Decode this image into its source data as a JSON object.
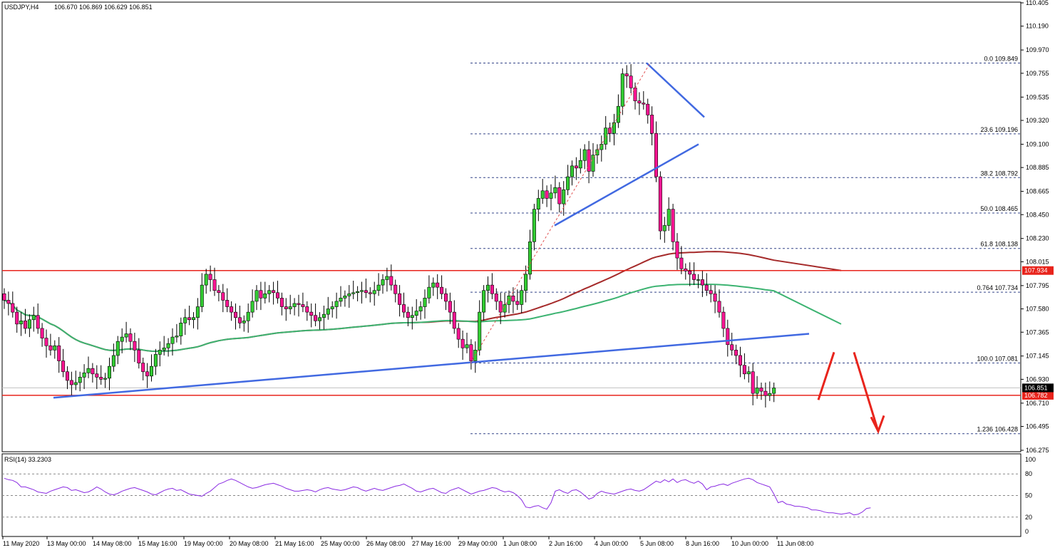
{
  "header": {
    "symbol": "USDJPY,H4",
    "ohlc": "106.670 106.869 106.629 106.851"
  },
  "rsi": {
    "label": "RSI(14) 33.2303",
    "levels": [
      "100",
      "80",
      "50",
      "20",
      "0"
    ],
    "values": [
      74,
      72,
      71,
      68,
      62,
      62,
      60,
      58,
      55,
      54,
      53,
      56,
      58,
      60,
      62,
      61,
      57,
      58,
      56,
      54,
      55,
      58,
      62,
      59,
      55,
      52,
      51,
      53,
      56,
      58,
      60,
      61,
      59,
      57,
      55,
      52,
      51,
      54,
      57,
      59,
      60,
      57,
      58,
      55,
      52,
      51,
      50,
      49,
      53,
      56,
      61,
      66,
      68,
      71,
      73,
      71,
      68,
      65,
      62,
      60,
      61,
      63,
      65,
      66,
      67,
      65,
      63,
      60,
      58,
      56,
      56,
      57,
      58,
      57,
      55,
      58,
      60,
      61,
      59,
      58,
      57,
      58,
      60,
      62,
      61,
      58,
      56,
      58,
      60,
      58,
      57,
      59,
      61,
      63,
      64,
      66,
      63,
      60,
      56,
      55,
      57,
      59,
      60,
      57,
      54,
      53,
      57,
      59,
      61,
      58,
      55,
      52,
      54,
      56,
      57,
      59,
      61,
      60,
      57,
      55,
      56,
      54,
      50,
      44,
      34,
      33,
      35,
      36,
      33,
      31,
      40,
      56,
      58,
      55,
      53,
      57,
      58,
      55,
      50,
      45,
      47,
      53,
      56,
      54,
      53,
      52,
      54,
      56,
      58,
      59,
      57,
      56,
      58,
      62,
      66,
      70,
      68,
      72,
      69,
      73,
      68,
      71,
      72,
      69,
      67,
      70,
      66,
      58,
      62,
      63,
      65,
      66,
      64,
      67,
      69,
      71,
      73,
      74,
      72,
      68,
      66,
      64,
      62,
      52,
      40,
      42,
      38,
      37,
      35,
      35,
      34,
      33,
      30,
      30,
      29,
      27,
      26,
      26,
      25,
      24,
      25,
      26,
      23,
      24,
      27,
      32,
      33
    ]
  },
  "chart_data": {
    "type": "candlestick",
    "symbol": "USDJPY,H4",
    "ylim": [
      106.275,
      110.405
    ],
    "price_ticks": [
      "110.405",
      "110.190",
      "109.970",
      "109.755",
      "109.535",
      "109.320",
      "109.100",
      "108.885",
      "108.665",
      "108.450",
      "108.230",
      "108.015",
      "107.795",
      "107.580",
      "107.365",
      "107.145",
      "106.930",
      "106.710",
      "106.495",
      "106.275"
    ],
    "x_ticks": [
      "11 May 2020",
      "13 May 00:00",
      "14 May 08:00",
      "15 May 16:00",
      "19 May 00:00",
      "20 May 08:00",
      "21 May 16:00",
      "25 May 00:00",
      "26 May 08:00",
      "27 May 16:00",
      "29 May 00:00",
      "1 Jun 08:00",
      "2 Jun 16:00",
      "4 Jun 00:00",
      "5 Jun 08:00",
      "8 Jun 16:00",
      "10 Jun 00:00",
      "11 Jun 08:00"
    ],
    "close": [
      107.66,
      107.63,
      107.55,
      107.44,
      107.47,
      107.4,
      107.48,
      107.52,
      107.4,
      107.31,
      107.24,
      107.2,
      107.24,
      107.1,
      107.0,
      106.92,
      106.88,
      106.9,
      106.95,
      106.99,
      107.03,
      106.98,
      106.95,
      106.93,
      106.94,
      107.05,
      107.15,
      107.28,
      107.32,
      107.35,
      107.28,
      107.2,
      107.08,
      107.0,
      106.96,
      107.05,
      107.16,
      107.2,
      107.22,
      107.26,
      107.32,
      107.33,
      107.45,
      107.5,
      107.48,
      107.5,
      107.6,
      107.8,
      107.9,
      107.85,
      107.75,
      107.73,
      107.66,
      107.6,
      107.55,
      107.5,
      107.45,
      107.47,
      107.55,
      107.65,
      107.75,
      107.68,
      107.72,
      107.75,
      107.73,
      107.68,
      107.6,
      107.58,
      107.6,
      107.63,
      107.62,
      107.6,
      107.55,
      107.52,
      107.47,
      107.5,
      107.53,
      107.58,
      107.6,
      107.65,
      107.68,
      107.7,
      107.72,
      107.73,
      107.74,
      107.75,
      107.73,
      107.72,
      107.75,
      107.8,
      107.85,
      107.88,
      107.8,
      107.72,
      107.62,
      107.55,
      107.5,
      107.52,
      107.56,
      107.6,
      107.68,
      107.78,
      107.82,
      107.78,
      107.72,
      107.65,
      107.55,
      107.4,
      107.3,
      107.22,
      107.25,
      107.1,
      107.2,
      107.55,
      107.75,
      107.8,
      107.72,
      107.65,
      107.55,
      107.62,
      107.7,
      107.65,
      107.62,
      107.75,
      107.9,
      108.2,
      108.5,
      108.6,
      108.67,
      108.6,
      108.65,
      108.7,
      108.55,
      108.68,
      108.8,
      108.9,
      108.88,
      108.95,
      109.05,
      108.85,
      109.0,
      109.05,
      109.1,
      109.25,
      109.2,
      109.3,
      109.45,
      109.75,
      109.73,
      109.62,
      109.5,
      109.48,
      109.47,
      109.37,
      109.2,
      108.8,
      108.3,
      108.35,
      108.5,
      108.2,
      108.05,
      107.95,
      107.93,
      107.9,
      107.85,
      107.85,
      107.8,
      107.75,
      107.72,
      107.65,
      107.55,
      107.4,
      107.25,
      107.2,
      107.15,
      107.06,
      106.98,
      107.0,
      106.8,
      106.85,
      106.82,
      106.78,
      106.8,
      106.85
    ],
    "open": [
      107.72,
      107.66,
      107.63,
      107.55,
      107.44,
      107.47,
      107.4,
      107.48,
      107.52,
      107.4,
      107.31,
      107.24,
      107.2,
      107.24,
      107.1,
      107.0,
      106.92,
      106.88,
      106.9,
      106.95,
      106.99,
      107.03,
      106.98,
      106.95,
      106.93,
      106.94,
      107.05,
      107.15,
      107.28,
      107.32,
      107.35,
      107.28,
      107.2,
      107.08,
      107.0,
      106.96,
      107.05,
      107.16,
      107.2,
      107.22,
      107.26,
      107.32,
      107.33,
      107.45,
      107.5,
      107.48,
      107.5,
      107.6,
      107.8,
      107.9,
      107.85,
      107.75,
      107.73,
      107.66,
      107.6,
      107.55,
      107.5,
      107.45,
      107.47,
      107.55,
      107.65,
      107.75,
      107.68,
      107.72,
      107.75,
      107.73,
      107.68,
      107.6,
      107.58,
      107.6,
      107.63,
      107.62,
      107.6,
      107.55,
      107.52,
      107.47,
      107.5,
      107.53,
      107.58,
      107.6,
      107.65,
      107.68,
      107.7,
      107.72,
      107.73,
      107.74,
      107.75,
      107.73,
      107.72,
      107.75,
      107.8,
      107.85,
      107.88,
      107.8,
      107.72,
      107.62,
      107.55,
      107.5,
      107.52,
      107.56,
      107.6,
      107.68,
      107.78,
      107.82,
      107.78,
      107.72,
      107.65,
      107.55,
      107.4,
      107.3,
      107.22,
      107.25,
      107.1,
      107.2,
      107.55,
      107.75,
      107.8,
      107.72,
      107.65,
      107.55,
      107.62,
      107.7,
      107.65,
      107.62,
      107.75,
      107.9,
      108.2,
      108.5,
      108.6,
      108.67,
      108.6,
      108.65,
      108.7,
      108.55,
      108.68,
      108.8,
      108.9,
      108.88,
      108.95,
      109.05,
      108.85,
      109.0,
      109.05,
      109.1,
      109.25,
      109.2,
      109.3,
      109.45,
      109.75,
      109.73,
      109.62,
      109.5,
      109.48,
      109.47,
      109.37,
      109.2,
      108.8,
      108.3,
      108.35,
      108.5,
      108.2,
      108.05,
      107.95,
      107.93,
      107.9,
      107.85,
      107.85,
      107.8,
      107.75,
      107.72,
      107.65,
      107.55,
      107.4,
      107.25,
      107.2,
      107.15,
      107.06,
      106.98,
      107.0,
      106.8,
      106.85,
      106.82,
      106.78,
      106.8
    ],
    "fib_levels": [
      {
        "label": "0.0 109.849",
        "price": 109.849
      },
      {
        "label": "23.6 109.196",
        "price": 109.196
      },
      {
        "label": "38.2 108.792",
        "price": 108.792
      },
      {
        "label": "50.0 108.465",
        "price": 108.465
      },
      {
        "label": "61.8 108.138",
        "price": 108.138
      },
      {
        "label": "0.764 107.734",
        "price": 107.734
      },
      {
        "label": "100.0 107.081",
        "price": 107.081
      },
      {
        "label": "1.236 106.428",
        "price": 106.428
      }
    ],
    "horizontal_levels": [
      {
        "label": "107.934",
        "price": 107.934,
        "color": "#e8241c"
      },
      {
        "label": "106.782",
        "price": 106.782,
        "color": "#e8241c"
      }
    ],
    "current_price": {
      "label": "106.851",
      "price": 106.851
    },
    "colors": {
      "bull": "#32cd32",
      "bear": "#ff1493",
      "ma_fast": "#a52a2a",
      "ma_slow": "#3cb371",
      "trend": "#4169e1",
      "level": "#e8241c",
      "fib": "#334488",
      "rsi": "#8a2be2"
    }
  }
}
